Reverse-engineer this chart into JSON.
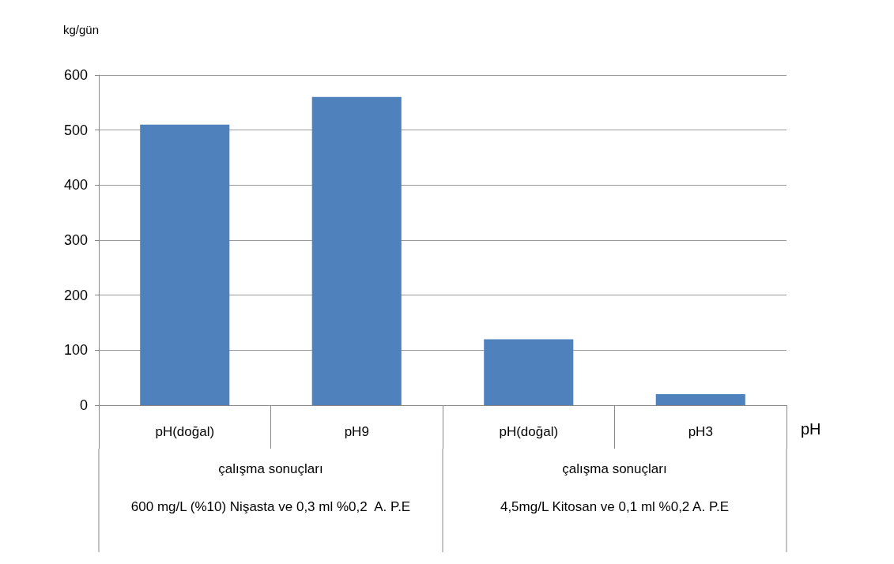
{
  "chart_data": {
    "type": "bar",
    "categories": [
      "pH(doğal)",
      "pH9",
      "pH(doğal)",
      "pH3"
    ],
    "values": [
      510,
      560,
      120,
      20
    ],
    "color": "#4f81bd",
    "ylabel": "kg/gün",
    "xlabel": "pH",
    "ylim": [
      0,
      600
    ],
    "yticks": [
      0,
      100,
      200,
      300,
      400,
      500,
      600
    ],
    "grid": "y",
    "annotations": [
      "çalışma sonuçları",
      "çalışma sonuçları",
      "600 mg/L (%10) Nişasta ve 0,3 ml %0,2  A. P.E",
      "4,5mg/L Kitosan ve 0,1 ml %0,2 A. P.E"
    ]
  }
}
